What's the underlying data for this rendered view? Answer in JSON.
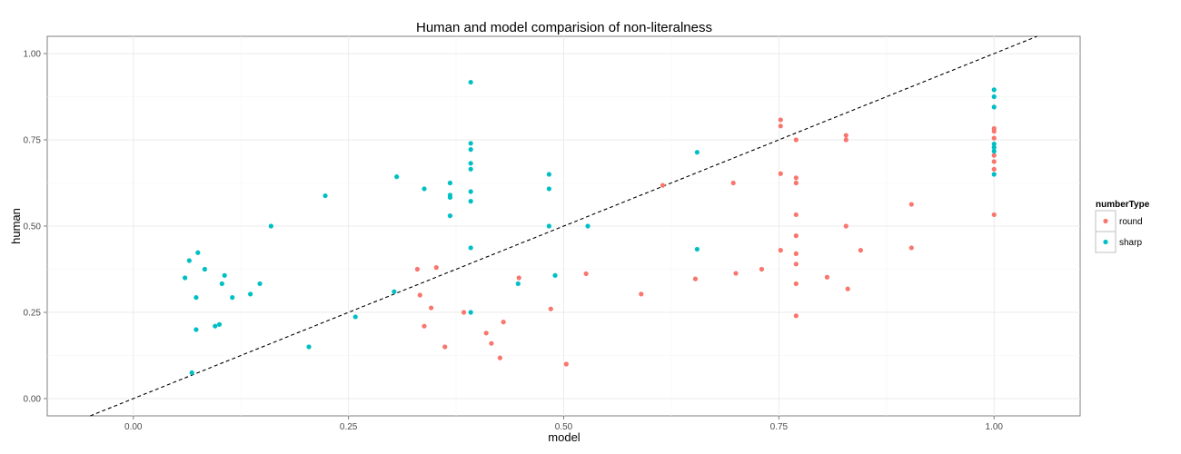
{
  "chart_data": {
    "type": "scatter",
    "title": "Human and model comparision of non-literalness",
    "xlabel": "model",
    "ylabel": "human",
    "xlim": [
      -0.1,
      1.1
    ],
    "ylim": [
      -0.05,
      1.05
    ],
    "xticks": [
      "0.00",
      "0.25",
      "0.50",
      "0.75",
      "1.00"
    ],
    "yticks": [
      "0.00",
      "0.25",
      "0.50",
      "0.75",
      "1.00"
    ],
    "grid": true,
    "legend": {
      "title": "numberType",
      "position": "right"
    },
    "reference_line": {
      "type": "dashed",
      "slope": 1,
      "intercept": 0
    },
    "series": [
      {
        "name": "round",
        "color": "#F8766D",
        "points": [
          [
            0.33,
            0.375
          ],
          [
            0.333,
            0.3
          ],
          [
            0.338,
            0.21
          ],
          [
            0.346,
            0.263
          ],
          [
            0.352,
            0.38
          ],
          [
            0.362,
            0.15
          ],
          [
            0.384,
            0.25
          ],
          [
            0.41,
            0.19
          ],
          [
            0.416,
            0.16
          ],
          [
            0.426,
            0.118
          ],
          [
            0.43,
            0.222
          ],
          [
            0.448,
            0.35
          ],
          [
            0.485,
            0.26
          ],
          [
            0.503,
            0.1
          ],
          [
            0.526,
            0.362
          ],
          [
            0.59,
            0.303
          ],
          [
            0.615,
            0.618
          ],
          [
            0.653,
            0.347
          ],
          [
            0.697,
            0.625
          ],
          [
            0.7,
            0.363
          ],
          [
            0.73,
            0.375
          ],
          [
            0.752,
            0.808
          ],
          [
            0.752,
            0.79
          ],
          [
            0.752,
            0.652
          ],
          [
            0.752,
            0.43
          ],
          [
            0.77,
            0.75
          ],
          [
            0.77,
            0.64
          ],
          [
            0.77,
            0.625
          ],
          [
            0.77,
            0.533
          ],
          [
            0.77,
            0.472
          ],
          [
            0.77,
            0.42
          ],
          [
            0.77,
            0.39
          ],
          [
            0.77,
            0.333
          ],
          [
            0.77,
            0.24
          ],
          [
            0.806,
            0.352
          ],
          [
            0.828,
            0.763
          ],
          [
            0.828,
            0.75
          ],
          [
            0.828,
            0.5
          ],
          [
            0.83,
            0.318
          ],
          [
            0.845,
            0.43
          ],
          [
            0.904,
            0.563
          ],
          [
            0.904,
            0.437
          ],
          [
            1.0,
            0.783
          ],
          [
            1.0,
            0.775
          ],
          [
            1.0,
            0.755
          ],
          [
            1.0,
            0.705
          ],
          [
            1.0,
            0.687
          ],
          [
            1.0,
            0.665
          ],
          [
            1.0,
            0.533
          ]
        ]
      },
      {
        "name": "sharp",
        "color": "#00BFC4",
        "points": [
          [
            0.06,
            0.35
          ],
          [
            0.065,
            0.4
          ],
          [
            0.068,
            0.075
          ],
          [
            0.073,
            0.293
          ],
          [
            0.073,
            0.2
          ],
          [
            0.075,
            0.423
          ],
          [
            0.083,
            0.375
          ],
          [
            0.095,
            0.21
          ],
          [
            0.1,
            0.215
          ],
          [
            0.103,
            0.333
          ],
          [
            0.106,
            0.357
          ],
          [
            0.115,
            0.293
          ],
          [
            0.136,
            0.303
          ],
          [
            0.147,
            0.333
          ],
          [
            0.16,
            0.5
          ],
          [
            0.204,
            0.15
          ],
          [
            0.223,
            0.588
          ],
          [
            0.258,
            0.237
          ],
          [
            0.303,
            0.31
          ],
          [
            0.306,
            0.643
          ],
          [
            0.338,
            0.608
          ],
          [
            0.368,
            0.625
          ],
          [
            0.368,
            0.59
          ],
          [
            0.368,
            0.583
          ],
          [
            0.368,
            0.53
          ],
          [
            0.392,
            0.917
          ],
          [
            0.392,
            0.74
          ],
          [
            0.392,
            0.722
          ],
          [
            0.392,
            0.682
          ],
          [
            0.392,
            0.665
          ],
          [
            0.392,
            0.6
          ],
          [
            0.392,
            0.572
          ],
          [
            0.392,
            0.437
          ],
          [
            0.392,
            0.25
          ],
          [
            0.447,
            0.333
          ],
          [
            0.483,
            0.65
          ],
          [
            0.483,
            0.608
          ],
          [
            0.483,
            0.5
          ],
          [
            0.49,
            0.357
          ],
          [
            0.528,
            0.5
          ],
          [
            0.655,
            0.714
          ],
          [
            0.655,
            0.433
          ],
          [
            1.0,
            0.895
          ],
          [
            1.0,
            0.875
          ],
          [
            1.0,
            0.845
          ],
          [
            1.0,
            0.738
          ],
          [
            1.0,
            0.728
          ],
          [
            1.0,
            0.717
          ],
          [
            1.0,
            0.65
          ]
        ]
      }
    ]
  }
}
